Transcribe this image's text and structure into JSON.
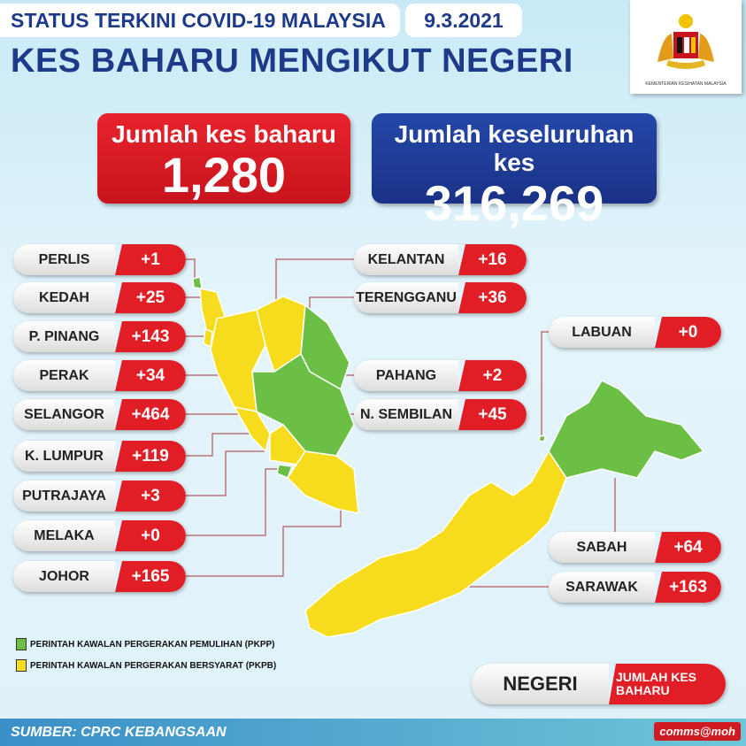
{
  "header": {
    "status": "STATUS TERKINI COVID-19 MALAYSIA",
    "date": "9.3.2021",
    "title": "KES BAHARU MENGIKUT NEGERI",
    "ministry": "KEMENTERIAN KESIHATAN MALAYSIA"
  },
  "totals": {
    "new_label": "Jumlah kes baharu",
    "new_value": "1,280",
    "cumulative_label": "Jumlah keseluruhan kes",
    "cumulative_value": "316,269"
  },
  "states": [
    {
      "name": "PERLIS",
      "cases": "+1",
      "zone": "PKPP"
    },
    {
      "name": "KEDAH",
      "cases": "+25",
      "zone": "PKPB"
    },
    {
      "name": "P. PINANG",
      "cases": "+143",
      "zone": "PKPB"
    },
    {
      "name": "PERAK",
      "cases": "+34",
      "zone": "PKPB"
    },
    {
      "name": "SELANGOR",
      "cases": "+464",
      "zone": "PKPB"
    },
    {
      "name": "K. LUMPUR",
      "cases": "+119",
      "zone": "PKPB"
    },
    {
      "name": "PUTRAJAYA",
      "cases": "+3",
      "zone": "PKPB"
    },
    {
      "name": "MELAKA",
      "cases": "+0",
      "zone": "PKPP"
    },
    {
      "name": "JOHOR",
      "cases": "+165",
      "zone": "PKPB"
    },
    {
      "name": "KELANTAN",
      "cases": "+16",
      "zone": "PKPB"
    },
    {
      "name": "TERENGGANU",
      "cases": "+36",
      "zone": "PKPP"
    },
    {
      "name": "PAHANG",
      "cases": "+2",
      "zone": "PKPP"
    },
    {
      "name": "N. SEMBILAN",
      "cases": "+45",
      "zone": "PKPB"
    },
    {
      "name": "LABUAN",
      "cases": "+0",
      "zone": "PKPP"
    },
    {
      "name": "SABAH",
      "cases": "+64",
      "zone": "PKPP"
    },
    {
      "name": "SARAWAK",
      "cases": "+163",
      "zone": "PKPB"
    }
  ],
  "legend": [
    {
      "label": "PERINTAH KAWALAN PERGERAKAN PEMULIHAN (PKPP)",
      "color": "#6cbf45"
    },
    {
      "label": "PERINTAH KAWALAN PERGERAKAN BERSYARAT (PKPB)",
      "color": "#f6dc1c"
    }
  ],
  "key": {
    "state": "NEGERI",
    "cases": "JUMLAH KES BAHARU"
  },
  "footer": {
    "source": "SUMBER: CPRC KEBANGSAAN",
    "handle": "comms@moh"
  }
}
